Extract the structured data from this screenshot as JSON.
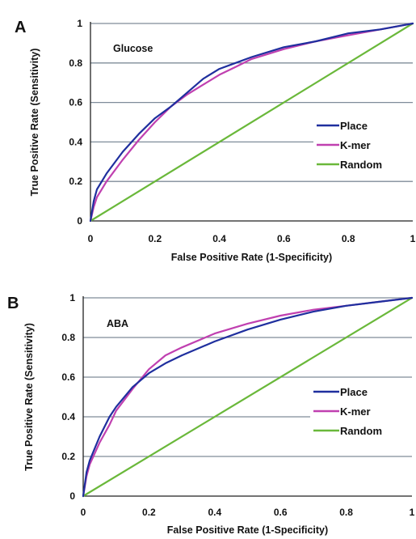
{
  "chart_data": [
    {
      "type": "line",
      "panel": "A",
      "annotation": "Glucose",
      "xlabel": "False Positive Rate (1-Specificity)",
      "ylabel": "True Positive Rate (Sensitivity)",
      "xlim": [
        0,
        1
      ],
      "ylim": [
        0,
        1
      ],
      "x_ticks": [
        "0",
        "0.2",
        "0.4",
        "0.6",
        "0.8",
        "1"
      ],
      "y_ticks": [
        "0",
        "0.2",
        "0.4",
        "0.6",
        "0.8",
        "1"
      ],
      "grid": "horizontal",
      "legend_position": "right",
      "series": [
        {
          "name": "Place",
          "color": "#1f2f9e",
          "points": [
            [
              0,
              0
            ],
            [
              0.01,
              0.1
            ],
            [
              0.02,
              0.16
            ],
            [
              0.05,
              0.24
            ],
            [
              0.1,
              0.35
            ],
            [
              0.15,
              0.44
            ],
            [
              0.2,
              0.52
            ],
            [
              0.25,
              0.58
            ],
            [
              0.3,
              0.65
            ],
            [
              0.35,
              0.72
            ],
            [
              0.4,
              0.77
            ],
            [
              0.45,
              0.8
            ],
            [
              0.5,
              0.83
            ],
            [
              0.6,
              0.88
            ],
            [
              0.7,
              0.91
            ],
            [
              0.8,
              0.95
            ],
            [
              0.9,
              0.97
            ],
            [
              1,
              1
            ]
          ]
        },
        {
          "name": "K-mer",
          "color": "#c040b0",
          "points": [
            [
              0,
              0
            ],
            [
              0.01,
              0.07
            ],
            [
              0.02,
              0.12
            ],
            [
              0.05,
              0.2
            ],
            [
              0.1,
              0.31
            ],
            [
              0.15,
              0.41
            ],
            [
              0.2,
              0.5
            ],
            [
              0.25,
              0.58
            ],
            [
              0.3,
              0.64
            ],
            [
              0.35,
              0.69
            ],
            [
              0.4,
              0.74
            ],
            [
              0.45,
              0.78
            ],
            [
              0.5,
              0.82
            ],
            [
              0.6,
              0.87
            ],
            [
              0.7,
              0.91
            ],
            [
              0.8,
              0.94
            ],
            [
              0.9,
              0.97
            ],
            [
              1,
              1
            ]
          ]
        },
        {
          "name": "Random",
          "color": "#6ab83a",
          "points": [
            [
              0,
              0
            ],
            [
              1,
              1
            ]
          ]
        }
      ]
    },
    {
      "type": "line",
      "panel": "B",
      "annotation": "ABA",
      "xlabel": "False Positive Rate (1-Specificity)",
      "ylabel": "True Positive Rate (Sensitivity)",
      "xlim": [
        0,
        1
      ],
      "ylim": [
        0,
        1
      ],
      "x_ticks": [
        "0",
        "0.2",
        "0.4",
        "0.6",
        "0.8",
        "1"
      ],
      "y_ticks": [
        "0",
        "0.2",
        "0.4",
        "0.6",
        "0.8",
        "1"
      ],
      "grid": "horizontal",
      "legend_position": "right",
      "series": [
        {
          "name": "Place",
          "color": "#1f2f9e",
          "points": [
            [
              0,
              0
            ],
            [
              0.01,
              0.12
            ],
            [
              0.02,
              0.18
            ],
            [
              0.05,
              0.3
            ],
            [
              0.08,
              0.4
            ],
            [
              0.1,
              0.45
            ],
            [
              0.15,
              0.55
            ],
            [
              0.2,
              0.62
            ],
            [
              0.25,
              0.67
            ],
            [
              0.3,
              0.71
            ],
            [
              0.4,
              0.78
            ],
            [
              0.5,
              0.84
            ],
            [
              0.6,
              0.89
            ],
            [
              0.7,
              0.93
            ],
            [
              0.8,
              0.96
            ],
            [
              0.9,
              0.98
            ],
            [
              1,
              1
            ]
          ]
        },
        {
          "name": "K-mer",
          "color": "#c040b0",
          "points": [
            [
              0,
              0
            ],
            [
              0.01,
              0.1
            ],
            [
              0.02,
              0.16
            ],
            [
              0.05,
              0.27
            ],
            [
              0.08,
              0.36
            ],
            [
              0.1,
              0.43
            ],
            [
              0.15,
              0.54
            ],
            [
              0.2,
              0.64
            ],
            [
              0.25,
              0.71
            ],
            [
              0.3,
              0.75
            ],
            [
              0.4,
              0.82
            ],
            [
              0.5,
              0.87
            ],
            [
              0.6,
              0.91
            ],
            [
              0.7,
              0.94
            ],
            [
              0.8,
              0.96
            ],
            [
              0.9,
              0.98
            ],
            [
              1,
              1
            ]
          ]
        },
        {
          "name": "Random",
          "color": "#6ab83a",
          "points": [
            [
              0,
              0
            ],
            [
              1,
              1
            ]
          ]
        }
      ]
    }
  ]
}
